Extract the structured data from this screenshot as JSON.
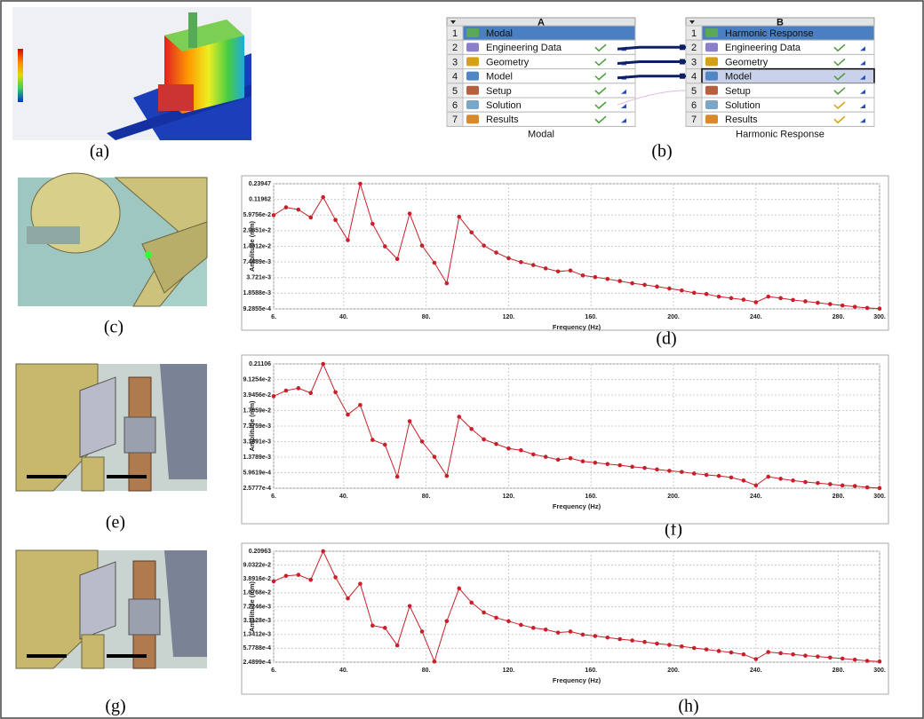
{
  "panel_labels": [
    "(a)",
    "(b)",
    "(c)",
    "(d)",
    "(e)",
    "(f)",
    "(g)",
    "(h)"
  ],
  "workflow": {
    "systems": [
      {
        "letter": "A",
        "footer": "Modal",
        "rows": [
          {
            "num": 1,
            "label": "Modal"
          },
          {
            "num": 2,
            "label": "Engineering Data"
          },
          {
            "num": 3,
            "label": "Geometry"
          },
          {
            "num": 4,
            "label": "Model"
          },
          {
            "num": 5,
            "label": "Setup"
          },
          {
            "num": 6,
            "label": "Solution"
          },
          {
            "num": 7,
            "label": "Results"
          }
        ]
      },
      {
        "letter": "B",
        "footer": "Harmonic Response",
        "rows": [
          {
            "num": 1,
            "label": "Harmonic Response"
          },
          {
            "num": 2,
            "label": "Engineering Data"
          },
          {
            "num": 3,
            "label": "Geometry"
          },
          {
            "num": 4,
            "label": "Model"
          },
          {
            "num": 5,
            "label": "Setup"
          },
          {
            "num": 6,
            "label": "Solution"
          },
          {
            "num": 7,
            "label": "Results"
          }
        ]
      }
    ]
  },
  "chart_data": [
    {
      "type": "line",
      "xlabel": "Frequency (Hz)",
      "ylabel": "Amplitude (mm)",
      "color": "#c8202a",
      "log_y": true,
      "grid": true,
      "x": [
        6,
        12,
        18,
        24,
        30,
        36,
        42,
        48,
        54,
        60,
        66,
        72,
        78,
        84,
        90,
        96,
        102,
        108,
        114,
        120,
        126,
        132,
        138,
        144,
        150,
        156,
        162,
        168,
        174,
        180,
        186,
        192,
        198,
        204,
        210,
        216,
        222,
        228,
        234,
        240,
        246,
        252,
        258,
        264,
        270,
        276,
        282,
        288,
        294,
        300
      ],
      "values": [
        0.0594,
        0.084,
        0.076,
        0.0536,
        0.132,
        0.048,
        0.0196,
        0.2394,
        0.0405,
        0.0149,
        0.0085,
        0.0637,
        0.0154,
        0.0072,
        0.0029,
        0.0555,
        0.0277,
        0.0154,
        0.0113,
        0.0088,
        0.0074,
        0.0065,
        0.0056,
        0.0049,
        0.0051,
        0.0041,
        0.0038,
        0.0035,
        0.0032,
        0.0029,
        0.0027,
        0.0025,
        0.0023,
        0.0021,
        0.0019,
        0.0018,
        0.0016,
        0.0015,
        0.0014,
        0.00125,
        0.0016,
        0.0015,
        0.00138,
        0.0013,
        0.00122,
        0.00115,
        0.00108,
        0.00102,
        0.00097,
        0.00094
      ],
      "xlim": [
        6,
        300
      ],
      "xticks": [
        {
          "value": 6,
          "label": "6."
        },
        {
          "value": 40,
          "label": "40."
        },
        {
          "value": 80,
          "label": "80."
        },
        {
          "value": 120,
          "label": "120."
        },
        {
          "value": 160,
          "label": "160."
        },
        {
          "value": 200,
          "label": "200."
        },
        {
          "value": 240,
          "label": "240."
        },
        {
          "value": 280,
          "label": "280."
        },
        {
          "value": 300,
          "label": "300."
        }
      ],
      "ylim": [
        0.00092855,
        0.23947
      ],
      "yticks": [
        {
          "value": 0.00092855,
          "label": "9.2855e-4"
        },
        {
          "value": 0.0018588,
          "label": "1.8588e-3"
        },
        {
          "value": 0.003721,
          "label": "3.721e-3"
        },
        {
          "value": 0.0074489,
          "label": "7.4489e-3"
        },
        {
          "value": 0.014912,
          "label": "1.4912e-2"
        },
        {
          "value": 0.029851,
          "label": "2.9851e-2"
        },
        {
          "value": 0.059756,
          "label": "5.9756e-2"
        },
        0.11962,
        0.23947
      ]
    },
    {
      "type": "line",
      "xlabel": "Frequency (Hz)",
      "ylabel": "Amplitude (mm)",
      "color": "#c8202a",
      "log_y": true,
      "grid": true,
      "x": [
        6,
        12,
        18,
        24,
        30,
        36,
        42,
        48,
        54,
        60,
        66,
        72,
        78,
        84,
        90,
        96,
        102,
        108,
        114,
        120,
        126,
        132,
        138,
        144,
        150,
        156,
        162,
        168,
        174,
        180,
        186,
        192,
        198,
        204,
        210,
        216,
        222,
        228,
        234,
        240,
        246,
        252,
        258,
        264,
        270,
        276,
        282,
        288,
        294,
        300
      ],
      "values": [
        0.037,
        0.05,
        0.057,
        0.044,
        0.211,
        0.046,
        0.0137,
        0.023,
        0.0035,
        0.0027,
        0.00048,
        0.0096,
        0.0032,
        0.0014,
        0.0005,
        0.0122,
        0.0063,
        0.0036,
        0.0028,
        0.0022,
        0.002,
        0.0016,
        0.0014,
        0.0012,
        0.0013,
        0.0011,
        0.00102,
        0.00095,
        0.00089,
        0.00082,
        0.00077,
        0.00071,
        0.00066,
        0.00062,
        0.00057,
        0.00053,
        0.0005,
        0.00046,
        0.00039,
        0.0003,
        0.00048,
        0.00043,
        0.00039,
        0.00036,
        0.00034,
        0.00032,
        0.0003,
        0.00029,
        0.00027,
        0.00026
      ],
      "xlim": [
        6,
        300
      ],
      "xticks": [
        {
          "value": 6,
          "label": "6."
        },
        {
          "value": 40,
          "label": "40."
        },
        {
          "value": 80,
          "label": "80."
        },
        {
          "value": 120,
          "label": "120."
        },
        {
          "value": 160,
          "label": "160."
        },
        {
          "value": 200,
          "label": "200."
        },
        {
          "value": 240,
          "label": "240."
        },
        {
          "value": 280,
          "label": "280."
        },
        {
          "value": 300,
          "label": "300."
        }
      ],
      "ylim": [
        0.00025777,
        0.21106
      ],
      "yticks": [
        {
          "value": 0.00025777,
          "label": "2.5777e-4"
        },
        {
          "value": 0.00059619,
          "label": "5.9619e-4"
        },
        {
          "value": 0.0013789,
          "label": "1.3789e-3"
        },
        {
          "value": 0.0031891,
          "label": "3.1891e-3"
        },
        {
          "value": 0.0073759,
          "label": "7.3759e-3"
        },
        {
          "value": 0.017059,
          "label": "1.7059e-2"
        },
        {
          "value": 0.039456,
          "label": "3.9456e-2"
        },
        {
          "value": 0.091254,
          "label": "9.1254e-2"
        },
        0.21106
      ]
    },
    {
      "type": "line",
      "xlabel": "Frequency (Hz)",
      "ylabel": "Amplitude (mm)",
      "color": "#c8202a",
      "log_y": true,
      "grid": true,
      "x": [
        6,
        12,
        18,
        24,
        30,
        36,
        42,
        48,
        54,
        60,
        66,
        72,
        78,
        84,
        90,
        96,
        102,
        108,
        114,
        120,
        126,
        132,
        138,
        144,
        150,
        156,
        162,
        168,
        174,
        180,
        186,
        192,
        198,
        204,
        210,
        216,
        222,
        228,
        234,
        240,
        246,
        252,
        258,
        264,
        270,
        276,
        282,
        288,
        294,
        300
      ],
      "values": [
        0.0337,
        0.047,
        0.05,
        0.037,
        0.2096,
        0.043,
        0.012,
        0.029,
        0.0023,
        0.002,
        0.00069,
        0.0075,
        0.0016,
        0.00026,
        0.003,
        0.022,
        0.0093,
        0.0051,
        0.0037,
        0.003,
        0.0024,
        0.002,
        0.0018,
        0.0015,
        0.0016,
        0.00133,
        0.00122,
        0.00111,
        0.00101,
        0.00093,
        0.00085,
        0.00077,
        0.00071,
        0.00065,
        0.00059,
        0.00054,
        0.00049,
        0.00045,
        0.0004,
        0.0003,
        0.00046,
        0.00043,
        0.0004,
        0.00037,
        0.00035,
        0.00033,
        0.00031,
        0.00029,
        0.00027,
        0.00026
      ],
      "xlim": [
        6,
        300
      ],
      "xticks": [
        {
          "value": 6,
          "label": "6."
        },
        {
          "value": 40,
          "label": "40."
        },
        {
          "value": 80,
          "label": "80."
        },
        {
          "value": 120,
          "label": "120."
        },
        {
          "value": 160,
          "label": "160."
        },
        {
          "value": 200,
          "label": "200."
        },
        {
          "value": 240,
          "label": "240."
        },
        {
          "value": 280,
          "label": "280."
        },
        {
          "value": 300,
          "label": "300."
        }
      ],
      "ylim": [
        0.00024899,
        0.20963
      ],
      "yticks": [
        {
          "value": 0.00024899,
          "label": "2.4899e-4"
        },
        {
          "value": 0.00057788,
          "label": "5.7788e-4"
        },
        {
          "value": 0.0013412,
          "label": "1.3412e-3"
        },
        {
          "value": 0.0031128,
          "label": "3.1128e-3"
        },
        {
          "value": 0.0072246,
          "label": "7.2246e-3"
        },
        {
          "value": 0.016768,
          "label": "1.6768e-2"
        },
        {
          "value": 0.038916,
          "label": "3.8916e-2"
        },
        {
          "value": 0.090322,
          "label": "9.0322e-2"
        },
        0.20963
      ]
    }
  ]
}
